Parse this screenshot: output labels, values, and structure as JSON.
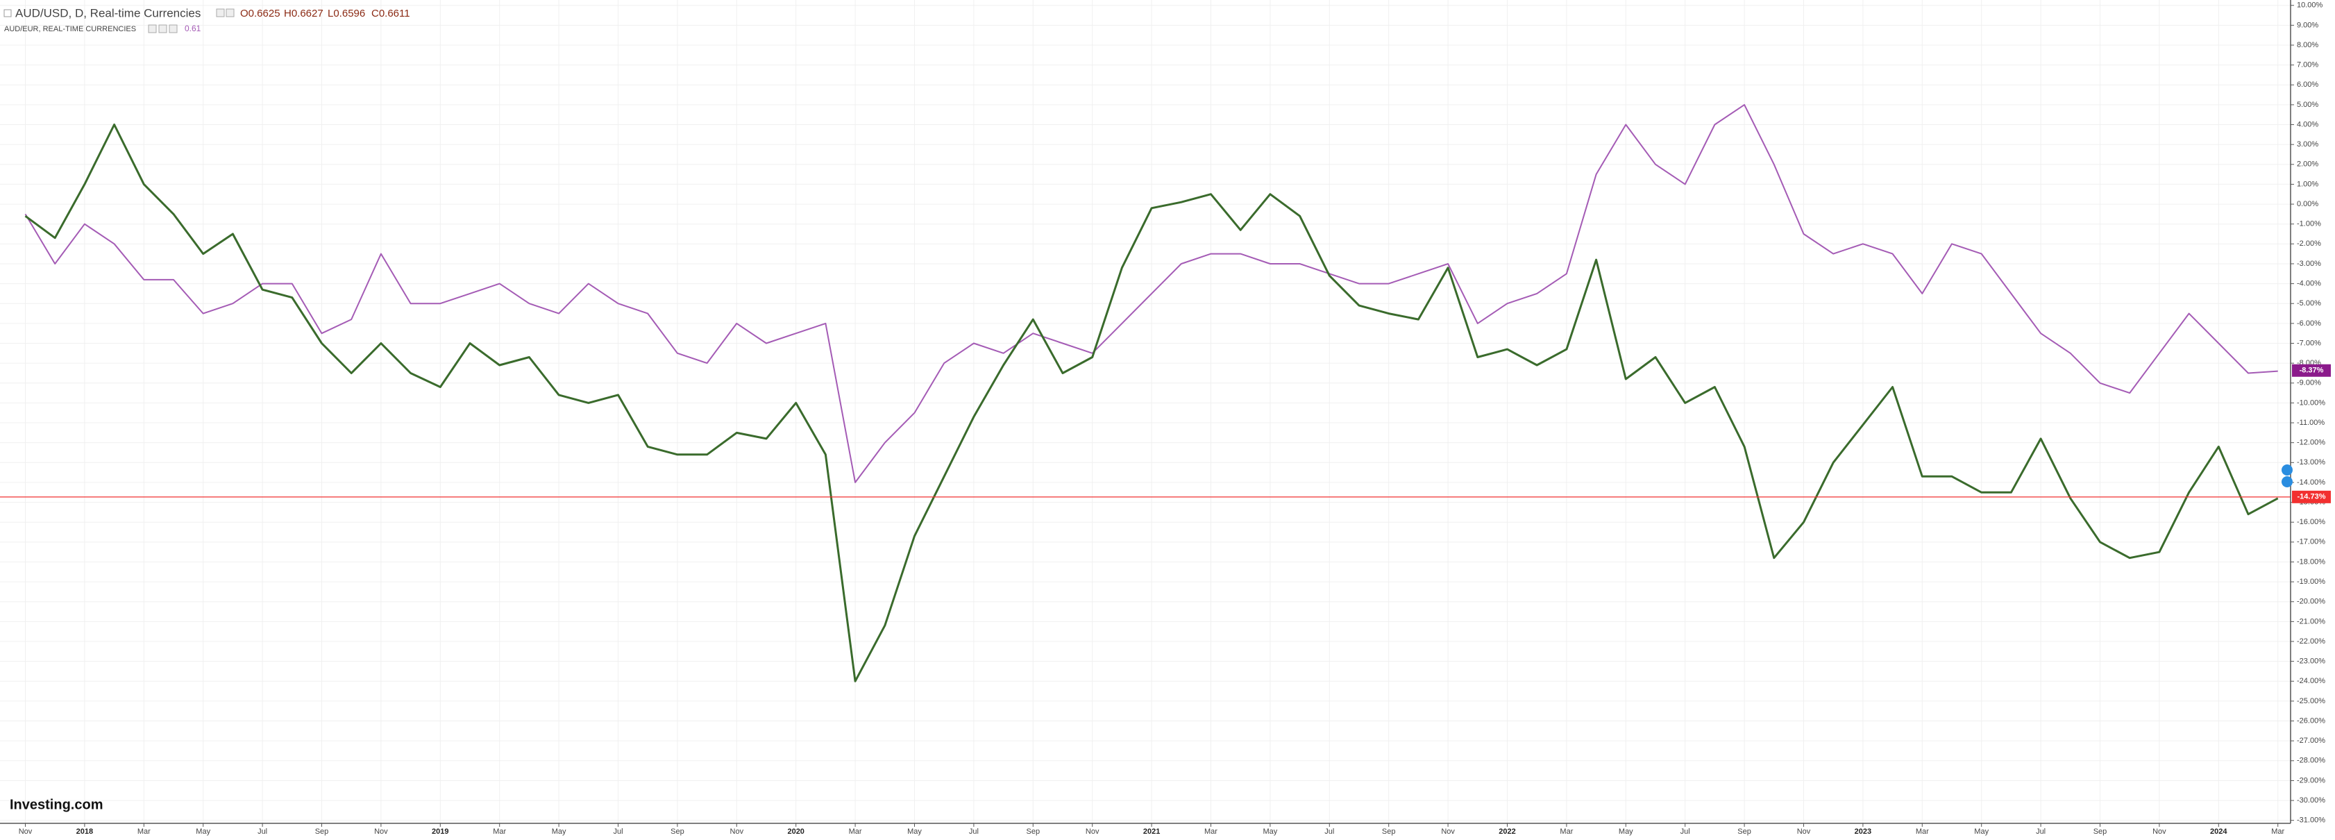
{
  "chart_data": {
    "type": "line",
    "title": "AUD/USD, D, Real-time Currencies",
    "ohlc": [
      {
        "value": 0.6625,
        "label": "O0.6625"
      },
      {
        "value": 0.6627,
        "label": "H0.6627"
      },
      {
        "value": 0.6596,
        "label": "L0.6596"
      },
      {
        "value": 0.6611,
        "label": "C0.6611"
      }
    ],
    "logo": "Investing.com",
    "categories": [
      "Nov",
      null,
      "2018",
      null,
      "Mar",
      null,
      "May",
      null,
      "Jul",
      null,
      "Sep",
      null,
      "Nov",
      null,
      "2019",
      null,
      "Mar",
      null,
      "May",
      null,
      "Jul",
      null,
      "Sep",
      null,
      "Nov",
      null,
      "2020",
      null,
      "Mar",
      null,
      "May",
      null,
      "Jul",
      null,
      "Sep",
      null,
      "Nov",
      null,
      "2021",
      null,
      "Mar",
      null,
      "May",
      null,
      "Jul",
      null,
      "Sep",
      null,
      "Nov",
      null,
      "2022",
      null,
      "Mar",
      null,
      "May",
      null,
      "Jul",
      null,
      "Sep",
      null,
      "Nov",
      null,
      "2023",
      null,
      "Mar",
      null,
      "May",
      null,
      "Jul",
      null,
      "Sep",
      null,
      "Nov",
      null,
      "2024",
      null,
      "Mar"
    ],
    "series": [
      {
        "name": "AUD/USD, D, Real-time Currencies",
        "color": "#3a6b2c",
        "last_value": {
          "value": -14.73,
          "label": "-14.73%"
        },
        "last_color": "#f23030",
        "values": [
          -0.6,
          -1.7,
          1.0,
          4.0,
          1.0,
          -0.5,
          -2.5,
          -1.5,
          -4.3,
          -4.7,
          -7.0,
          -8.5,
          -7.0,
          -8.5,
          -9.2,
          -7.0,
          -8.1,
          -7.7,
          -9.6,
          -10.0,
          -9.6,
          -12.2,
          -12.6,
          -12.6,
          -11.5,
          -11.8,
          -10.0,
          -12.6,
          -24.0,
          -21.2,
          -16.7,
          -13.7,
          -10.7,
          -8.1,
          -5.8,
          -8.5,
          -7.7,
          -3.2,
          -0.2,
          0.1,
          0.5,
          -1.3,
          0.5,
          -0.6,
          -3.6,
          -5.1,
          -5.5,
          -5.8,
          -3.2,
          -7.7,
          -7.3,
          -8.1,
          -7.3,
          -2.8,
          -8.8,
          -7.7,
          -10.0,
          -9.2,
          -12.2,
          -17.8,
          -16.0,
          -13.0,
          -11.1,
          -9.2,
          -13.7,
          -13.7,
          -14.5,
          -14.5,
          -11.8,
          -14.8,
          -17.0,
          -17.8,
          -17.5,
          -14.5,
          -12.2,
          -15.6,
          -14.8
        ]
      },
      {
        "name": "AUD/EUR, REAL-TIME CURRENCIES",
        "color": "#a45bb5",
        "last_price": 0.61,
        "last_value": {
          "value": -8.37,
          "label": "-8.37%"
        },
        "last_color": "#8b1a8b",
        "values": [
          -0.5,
          -3.0,
          -1.0,
          -2.0,
          -3.8,
          -3.8,
          -5.5,
          -5.0,
          -4.0,
          -4.0,
          -6.5,
          -5.8,
          -2.5,
          -5.0,
          -5.0,
          -4.5,
          -4.0,
          -5.0,
          -5.5,
          -4.0,
          -5.0,
          -5.5,
          -7.5,
          -8.0,
          -6.0,
          -7.0,
          -6.5,
          -6.0,
          -14.0,
          -12.0,
          -10.5,
          -8.0,
          -7.0,
          -7.5,
          -6.5,
          -7.0,
          -7.5,
          -6.0,
          -4.5,
          -3.0,
          -2.5,
          -2.5,
          -3.0,
          -3.0,
          -3.5,
          -4.0,
          -4.0,
          -3.5,
          -3.0,
          -6.0,
          -5.0,
          -4.5,
          -3.5,
          1.5,
          4.0,
          2.0,
          1.0,
          4.0,
          5.0,
          2.0,
          -1.5,
          -2.5,
          -2.0,
          -2.5,
          -4.5,
          -2.0,
          -2.5,
          -4.5,
          -6.5,
          -7.5,
          -9.0,
          -9.5,
          -7.5,
          -5.5,
          -7.0,
          -8.5,
          -8.4
        ]
      }
    ],
    "ylim": [
      -31.15,
      10.27
    ],
    "yticks": [
      {
        "value": 10,
        "label": "10.00%"
      },
      {
        "value": 9,
        "label": "9.00%"
      },
      {
        "value": 8,
        "label": "8.00%"
      },
      {
        "value": 7,
        "label": "7.00%"
      },
      {
        "value": 6,
        "label": "6.00%"
      },
      {
        "value": 5,
        "label": "5.00%"
      },
      {
        "value": 4,
        "label": "4.00%"
      },
      {
        "value": 3,
        "label": "3.00%"
      },
      {
        "value": 2,
        "label": "2.00%"
      },
      {
        "value": 1,
        "label": "1.00%"
      },
      {
        "value": 0,
        "label": "0.00%"
      },
      {
        "value": -1,
        "label": "-1.00%"
      },
      {
        "value": -2,
        "label": "-2.00%"
      },
      {
        "value": -3,
        "label": "-3.00%"
      },
      {
        "value": -4,
        "label": "-4.00%"
      },
      {
        "value": -5,
        "label": "-5.00%"
      },
      {
        "value": -6,
        "label": "-6.00%"
      },
      {
        "value": -7,
        "label": "-7.00%"
      },
      {
        "value": -8,
        "label": "-8.00%"
      },
      {
        "value": -9,
        "label": "-9.00%"
      },
      {
        "value": -10,
        "label": "-10.00%"
      },
      {
        "value": -11,
        "label": "-11.00%"
      },
      {
        "value": -12,
        "label": "-12.00%"
      },
      {
        "value": -13,
        "label": "-13.00%"
      },
      {
        "value": -14,
        "label": "-14.00%"
      },
      {
        "value": -15,
        "label": "-15.00%"
      },
      {
        "value": -16,
        "label": "-16.00%"
      },
      {
        "value": -17,
        "label": "-17.00%"
      },
      {
        "value": -18,
        "label": "-18.00%"
      },
      {
        "value": -19,
        "label": "-19.00%"
      },
      {
        "value": -20,
        "label": "-20.00%"
      },
      {
        "value": -21,
        "label": "-21.00%"
      },
      {
        "value": -22,
        "label": "-22.00%"
      },
      {
        "value": -23,
        "label": "-23.00%"
      },
      {
        "value": -24,
        "label": "-24.00%"
      },
      {
        "value": -25,
        "label": "-25.00%"
      },
      {
        "value": -26,
        "label": "-26.00%"
      },
      {
        "value": -27,
        "label": "-27.00%"
      },
      {
        "value": -28,
        "label": "-28.00%"
      },
      {
        "value": -29,
        "label": "-29.00%"
      },
      {
        "value": -30,
        "label": "-30.00%"
      },
      {
        "value": -31,
        "label": "-31.00%"
      }
    ],
    "grid": true
  }
}
